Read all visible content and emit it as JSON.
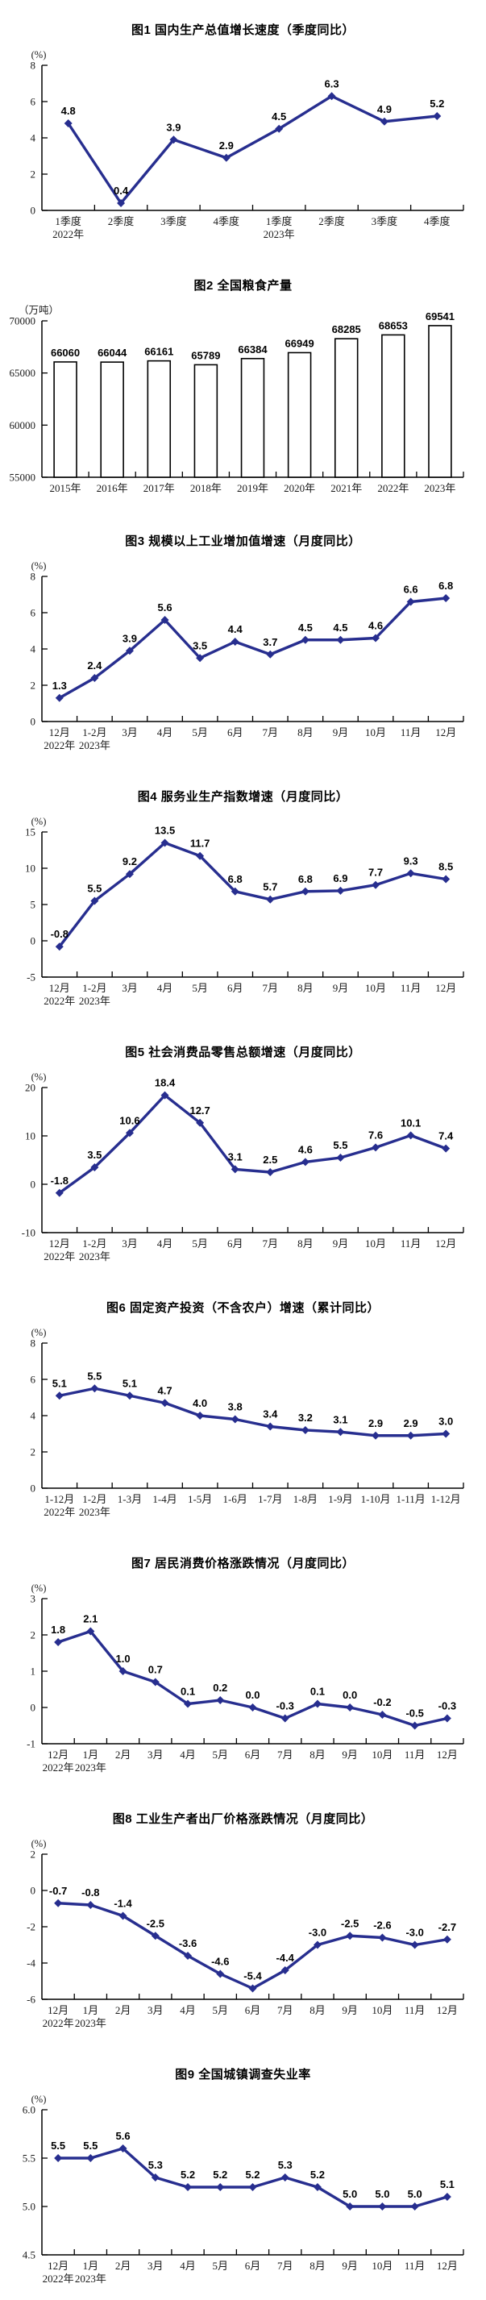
{
  "page": {
    "background": "#ffffff",
    "accent_line_color": "#272E8F"
  },
  "chart_data": [
    {
      "id": "gdp-quarterly-growth",
      "type": "line",
      "title": "图1  国内生产总值增长速度（季度同比）",
      "unit": "(%)",
      "color": "#272E8F",
      "ylim": [
        0,
        8
      ],
      "y_ticks": [
        "0",
        "2",
        "4",
        "6",
        "8"
      ],
      "categories": [
        "1季度",
        "2季度",
        "3季度",
        "4季度",
        "1季度",
        "2季度",
        "3季度",
        "4季度"
      ],
      "year_labels": [
        {
          "index": 0,
          "text": "2022年"
        },
        {
          "index": 4,
          "text": "2023年"
        }
      ],
      "values": [
        4.8,
        0.4,
        3.9,
        2.9,
        4.5,
        6.3,
        4.9,
        5.2
      ],
      "labels": [
        "4.8",
        "0.4",
        "3.9",
        "2.9",
        "4.5",
        "6.3",
        "4.9",
        "5.2"
      ],
      "legend": "none",
      "grid": "off"
    },
    {
      "id": "national-grain-output",
      "type": "bar",
      "title": "图2  全国粮食产量",
      "unit": "（万吨）",
      "bar_fill": "#ffffff",
      "bar_stroke": "#000000",
      "ylim": [
        55000,
        70000
      ],
      "y_ticks": [
        "55000",
        "60000",
        "65000",
        "70000"
      ],
      "categories": [
        "2015年",
        "2016年",
        "2017年",
        "2018年",
        "2019年",
        "2020年",
        "2021年",
        "2022年",
        "2023年"
      ],
      "values": [
        66060,
        66044,
        66161,
        65789,
        66384,
        66949,
        68285,
        68653,
        69541
      ],
      "labels": [
        "66060",
        "66044",
        "66161",
        "65789",
        "66384",
        "66949",
        "68285",
        "68653",
        "69541"
      ],
      "legend": "none",
      "grid": "off"
    },
    {
      "id": "industrial-added-value",
      "type": "line",
      "title": "图3  规模以上工业增加值增速（月度同比）",
      "unit": "(%)",
      "color": "#272E8F",
      "ylim": [
        0,
        8
      ],
      "y_ticks": [
        "0",
        "2",
        "4",
        "6",
        "8"
      ],
      "categories": [
        "12月",
        "1-2月",
        "3月",
        "4月",
        "5月",
        "6月",
        "7月",
        "8月",
        "9月",
        "10月",
        "11月",
        "12月"
      ],
      "year_labels": [
        {
          "index": 0,
          "text": "2022年"
        },
        {
          "index": 1,
          "text": "2023年"
        }
      ],
      "values": [
        1.3,
        2.4,
        3.9,
        5.6,
        3.5,
        4.4,
        3.7,
        4.5,
        4.5,
        4.6,
        6.6,
        6.8
      ],
      "labels": [
        "1.3",
        "2.4",
        "3.9",
        "5.6",
        "3.5",
        "4.4",
        "3.7",
        "4.5",
        "4.5",
        "4.6",
        "6.6",
        "6.8"
      ],
      "legend": "none",
      "grid": "off"
    },
    {
      "id": "services-production-index",
      "type": "line",
      "title": "图4  服务业生产指数增速（月度同比）",
      "unit": "(%)",
      "color": "#272E8F",
      "ylim": [
        -5,
        15
      ],
      "y_ticks": [
        "-5",
        "0",
        "5",
        "10",
        "15"
      ],
      "categories": [
        "12月",
        "1-2月",
        "3月",
        "4月",
        "5月",
        "6月",
        "7月",
        "8月",
        "9月",
        "10月",
        "11月",
        "12月"
      ],
      "year_labels": [
        {
          "index": 0,
          "text": "2022年"
        },
        {
          "index": 1,
          "text": "2023年"
        }
      ],
      "values": [
        -0.8,
        5.5,
        9.2,
        13.5,
        11.7,
        6.8,
        5.7,
        6.8,
        6.9,
        7.7,
        9.3,
        8.5
      ],
      "labels": [
        "-0.8",
        "5.5",
        "9.2",
        "13.5",
        "11.7",
        "6.8",
        "5.7",
        "6.8",
        "6.9",
        "7.7",
        "9.3",
        "8.5"
      ],
      "legend": "none",
      "grid": "off"
    },
    {
      "id": "retail-sales-growth",
      "type": "line",
      "title": "图5  社会消费品零售总额增速（月度同比）",
      "unit": "(%)",
      "color": "#272E8F",
      "ylim": [
        -10,
        20
      ],
      "y_ticks": [
        "-10",
        "0",
        "10",
        "20"
      ],
      "categories": [
        "12月",
        "1-2月",
        "3月",
        "4月",
        "5月",
        "6月",
        "7月",
        "8月",
        "9月",
        "10月",
        "11月",
        "12月"
      ],
      "year_labels": [
        {
          "index": 0,
          "text": "2022年"
        },
        {
          "index": 1,
          "text": "2023年"
        }
      ],
      "values": [
        -1.8,
        3.5,
        10.6,
        18.4,
        12.7,
        3.1,
        2.5,
        4.6,
        5.5,
        7.6,
        10.1,
        7.4
      ],
      "labels": [
        "-1.8",
        "3.5",
        "10.6",
        "18.4",
        "12.7",
        "3.1",
        "2.5",
        "4.6",
        "5.5",
        "7.6",
        "10.1",
        "7.4"
      ],
      "legend": "none",
      "grid": "off"
    },
    {
      "id": "fixed-asset-investment",
      "type": "line",
      "title": "图6  固定资产投资（不含农户）增速（累计同比）",
      "unit": "(%)",
      "color": "#272E8F",
      "ylim": [
        0,
        8
      ],
      "y_ticks": [
        "0",
        "2",
        "4",
        "6",
        "8"
      ],
      "categories": [
        "1-12月",
        "1-2月",
        "1-3月",
        "1-4月",
        "1-5月",
        "1-6月",
        "1-7月",
        "1-8月",
        "1-9月",
        "1-10月",
        "1-11月",
        "1-12月"
      ],
      "year_labels": [
        {
          "index": 0,
          "text": "2022年"
        },
        {
          "index": 1,
          "text": "2023年"
        }
      ],
      "values": [
        5.1,
        5.5,
        5.1,
        4.7,
        4.0,
        3.8,
        3.4,
        3.2,
        3.1,
        2.9,
        2.9,
        3.0
      ],
      "labels": [
        "5.1",
        "5.5",
        "5.1",
        "4.7",
        "4.0",
        "3.8",
        "3.4",
        "3.2",
        "3.1",
        "2.9",
        "2.9",
        "3.0"
      ],
      "legend": "none",
      "grid": "off"
    },
    {
      "id": "cpi-monthly",
      "type": "line",
      "title": "图7  居民消费价格涨跌情况（月度同比）",
      "unit": "(%)",
      "color": "#272E8F",
      "ylim": [
        -1,
        3
      ],
      "y_ticks": [
        "-1",
        "0",
        "1",
        "2",
        "3"
      ],
      "categories": [
        "12月",
        "1月",
        "2月",
        "3月",
        "4月",
        "5月",
        "6月",
        "7月",
        "8月",
        "9月",
        "10月",
        "11月",
        "12月"
      ],
      "year_labels": [
        {
          "index": 0,
          "text": "2022年"
        },
        {
          "index": 1,
          "text": "2023年"
        }
      ],
      "values": [
        1.8,
        2.1,
        1.0,
        0.7,
        0.1,
        0.2,
        0.0,
        -0.3,
        0.1,
        0.0,
        -0.2,
        -0.5,
        -0.3
      ],
      "labels": [
        "1.8",
        "2.1",
        "1.0",
        "0.7",
        "0.1",
        "0.2",
        "0.0",
        "-0.3",
        "0.1",
        "0.0",
        "-0.2",
        "-0.5",
        "-0.3"
      ],
      "legend": "none",
      "grid": "off"
    },
    {
      "id": "ppi-monthly",
      "type": "line",
      "title": "图8  工业生产者出厂价格涨跌情况（月度同比）",
      "unit": "(%)",
      "color": "#272E8F",
      "ylim": [
        -6,
        2
      ],
      "y_ticks": [
        "-6",
        "-4",
        "-2",
        "0",
        "2"
      ],
      "categories": [
        "12月",
        "1月",
        "2月",
        "3月",
        "4月",
        "5月",
        "6月",
        "7月",
        "8月",
        "9月",
        "10月",
        "11月",
        "12月"
      ],
      "year_labels": [
        {
          "index": 0,
          "text": "2022年"
        },
        {
          "index": 1,
          "text": "2023年"
        }
      ],
      "values": [
        -0.7,
        -0.8,
        -1.4,
        -2.5,
        -3.6,
        -4.6,
        -5.4,
        -4.4,
        -3.0,
        -2.5,
        -2.6,
        -3.0,
        -2.7
      ],
      "labels": [
        "-0.7",
        "-0.8",
        "-1.4",
        "-2.5",
        "-3.6",
        "-4.6",
        "-5.4",
        "-4.4",
        "-3.0",
        "-2.5",
        "-2.6",
        "-3.0",
        "-2.7"
      ],
      "legend": "none",
      "grid": "off"
    },
    {
      "id": "urban-unemployment-rate",
      "type": "line",
      "title": "图9  全国城镇调查失业率",
      "unit": "(%)",
      "color": "#272E8F",
      "ylim": [
        4.5,
        6.0
      ],
      "y_ticks": [
        "4.5",
        "5.0",
        "5.5",
        "6.0"
      ],
      "categories": [
        "12月",
        "1月",
        "2月",
        "3月",
        "4月",
        "5月",
        "6月",
        "7月",
        "8月",
        "9月",
        "10月",
        "11月",
        "12月"
      ],
      "year_labels": [
        {
          "index": 0,
          "text": "2022年"
        },
        {
          "index": 1,
          "text": "2023年"
        }
      ],
      "values": [
        5.5,
        5.5,
        5.6,
        5.3,
        5.2,
        5.2,
        5.2,
        5.3,
        5.2,
        5.0,
        5.0,
        5.0,
        5.1
      ],
      "labels": [
        "5.5",
        "5.5",
        "5.6",
        "5.3",
        "5.2",
        "5.2",
        "5.2",
        "5.3",
        "5.2",
        "5.0",
        "5.0",
        "5.0",
        "5.1"
      ],
      "legend": "none",
      "grid": "off"
    }
  ]
}
